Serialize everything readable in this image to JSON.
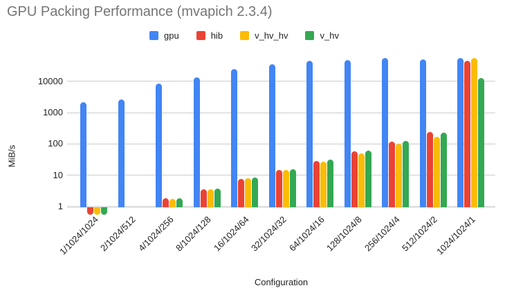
{
  "title": "GPU Packing Performance (mvapich 2.3.4)",
  "colors": {
    "title_text": "#757575",
    "axis_text": "#222222",
    "gridline": "#cccccc",
    "baseline": "#e2e2e2",
    "background": "#ffffff"
  },
  "chart_data": {
    "type": "bar",
    "title": "GPU Packing Performance (mvapich 2.3.4)",
    "xlabel": "Configuration",
    "ylabel": "MiB/s",
    "y_scale": "log",
    "grid": true,
    "legend_position": "top",
    "y_ticks": [
      1,
      10,
      100,
      1000,
      10000
    ],
    "y_tick_labels": [
      "1",
      "10",
      "100",
      "1000",
      "10000"
    ],
    "ylim": [
      0.4,
      85000
    ],
    "categories": [
      "1/1024/1024",
      "2/1024/512",
      "4/1024/256",
      "8/1024/128",
      "16/1024/64",
      "32/1024/32",
      "64/1024/16",
      "128/1024/8",
      "256/1024/4",
      "512/1024/2",
      "1024/1024/1"
    ],
    "series": [
      {
        "name": "gpu",
        "color": "#4285F4",
        "values": [
          2200,
          2700,
          8600,
          13500,
          25000,
          36000,
          45000,
          49000,
          55000,
          50000,
          55000
        ]
      },
      {
        "name": "hib",
        "color": "#EA4335",
        "values": [
          0.55,
          null,
          1.8,
          3.6,
          7.6,
          15,
          29,
          58,
          120,
          240,
          46000
        ]
      },
      {
        "name": "v_hv_hv",
        "color": "#FBBC04",
        "values": [
          0.55,
          null,
          1.75,
          3.6,
          7.9,
          14.5,
          27,
          51,
          100,
          170,
          57000
        ]
      },
      {
        "name": "v_hv",
        "color": "#34A853",
        "values": [
          0.55,
          null,
          1.85,
          3.7,
          8.3,
          15.5,
          31,
          60,
          125,
          225,
          13000
        ]
      }
    ]
  }
}
